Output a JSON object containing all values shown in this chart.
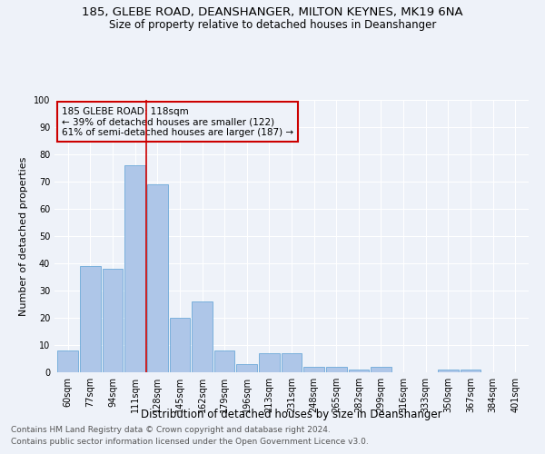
{
  "title1": "185, GLEBE ROAD, DEANSHANGER, MILTON KEYNES, MK19 6NA",
  "title2": "Size of property relative to detached houses in Deanshanger",
  "xlabel": "Distribution of detached houses by size in Deanshanger",
  "ylabel": "Number of detached properties",
  "footnote1": "Contains HM Land Registry data © Crown copyright and database right 2024.",
  "footnote2": "Contains public sector information licensed under the Open Government Licence v3.0.",
  "annotation_line1": "185 GLEBE ROAD: 118sqm",
  "annotation_line2": "← 39% of detached houses are smaller (122)",
  "annotation_line3": "61% of semi-detached houses are larger (187) →",
  "bar_labels": [
    "60sqm",
    "77sqm",
    "94sqm",
    "111sqm",
    "128sqm",
    "145sqm",
    "162sqm",
    "179sqm",
    "196sqm",
    "213sqm",
    "231sqm",
    "248sqm",
    "265sqm",
    "282sqm",
    "299sqm",
    "316sqm",
    "333sqm",
    "350sqm",
    "367sqm",
    "384sqm",
    "401sqm"
  ],
  "bar_values": [
    8,
    39,
    38,
    76,
    69,
    20,
    26,
    8,
    3,
    7,
    7,
    2,
    2,
    1,
    2,
    0,
    0,
    1,
    1,
    0,
    0
  ],
  "bar_color": "#aec6e8",
  "bar_edge_color": "#5a9fd4",
  "vline_x": 3.5,
  "vline_color": "#cc0000",
  "ylim": [
    0,
    100
  ],
  "yticks": [
    0,
    10,
    20,
    30,
    40,
    50,
    60,
    70,
    80,
    90,
    100
  ],
  "bg_color": "#eef2f9",
  "grid_color": "#ffffff",
  "annotation_box_color": "#cc0000",
  "title1_fontsize": 9.5,
  "title2_fontsize": 8.5,
  "xlabel_fontsize": 8.5,
  "ylabel_fontsize": 8,
  "tick_fontsize": 7,
  "annotation_fontsize": 7.5,
  "footnote_fontsize": 6.5
}
